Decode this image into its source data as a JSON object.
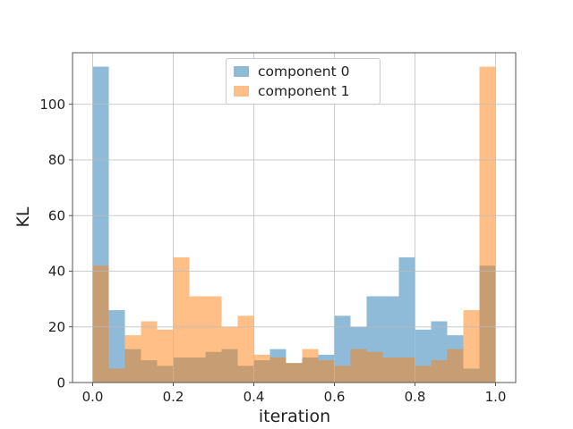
{
  "chart_data": {
    "type": "bar",
    "subtype": "overlapping-histogram",
    "xlabel": "iteration",
    "ylabel": "KL",
    "xlim": [
      -0.05,
      1.05
    ],
    "ylim": [
      0,
      118.5
    ],
    "bin_start": 0,
    "bin_width": 0.04,
    "num_bins": 25,
    "grid": true,
    "legend_position": "upper center",
    "xticks": {
      "values": [
        0,
        0.2,
        0.4,
        0.6,
        0.8,
        1.0
      ],
      "labels": [
        "0.0",
        "0.2",
        "0.4",
        "0.6",
        "0.8",
        "1.0"
      ]
    },
    "yticks": {
      "values": [
        0,
        20,
        40,
        60,
        80,
        100
      ],
      "labels": [
        "0",
        "20",
        "40",
        "60",
        "80",
        "100"
      ]
    },
    "series": [
      {
        "name": "component 0",
        "color": "#1f77b4",
        "opacity": 0.5,
        "values": [
          113.5,
          26,
          12,
          8,
          6,
          9,
          9,
          11,
          12,
          6,
          8,
          12,
          7,
          9,
          10,
          24,
          20,
          31,
          31,
          45,
          19,
          22,
          17,
          5,
          42
        ]
      },
      {
        "name": "component 1",
        "color": "#ff7f0e",
        "opacity": 0.5,
        "values": [
          42,
          5,
          17,
          22,
          19,
          45,
          31,
          31,
          20,
          24,
          10,
          9,
          7,
          12,
          8,
          6,
          12,
          11,
          9,
          9,
          6,
          8,
          12,
          26,
          113.5
        ]
      }
    ],
    "colors": {
      "grid": "#bbbbbb",
      "spine": "#555555",
      "tick": "#555555",
      "text": "#1f1f1f"
    }
  }
}
